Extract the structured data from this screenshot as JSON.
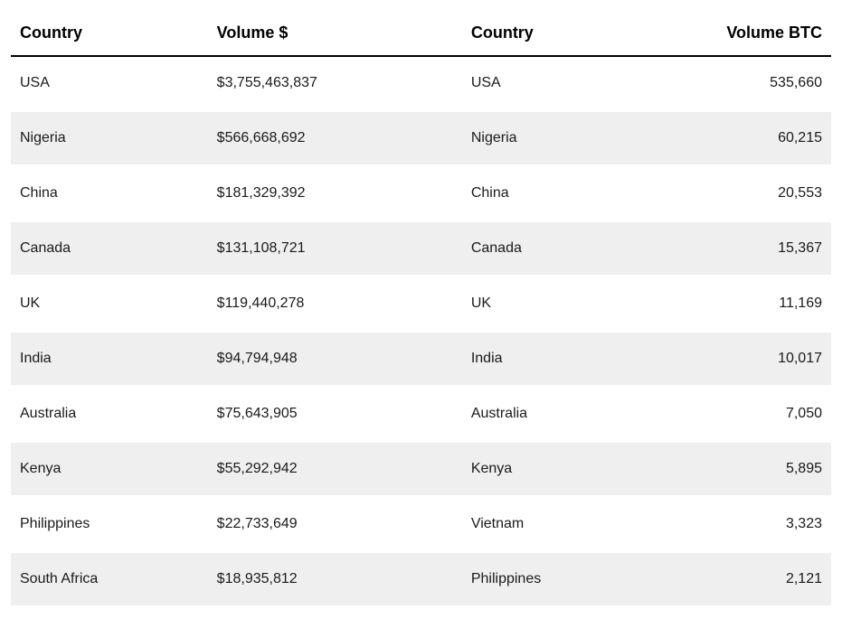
{
  "table": {
    "type": "table",
    "background_color": "#ffffff",
    "stripe_color": "#efefef",
    "text_color": "#1a1a1a",
    "header_border_color": "#000000",
    "header_fontsize": 18,
    "cell_fontsize": 16,
    "columns": [
      {
        "label": "Country",
        "align": "left"
      },
      {
        "label": "Volume $",
        "align": "left"
      },
      {
        "label": "Country",
        "align": "left"
      },
      {
        "label": "Volume BTC",
        "align": "right"
      }
    ],
    "rows": [
      {
        "country_usd": "USA",
        "volume_usd": "$3,755,463,837",
        "country_btc": "USA",
        "volume_btc": "535,660"
      },
      {
        "country_usd": "Nigeria",
        "volume_usd": "$566,668,692",
        "country_btc": "Nigeria",
        "volume_btc": "60,215"
      },
      {
        "country_usd": "China",
        "volume_usd": "$181,329,392",
        "country_btc": "China",
        "volume_btc": "20,553"
      },
      {
        "country_usd": "Canada",
        "volume_usd": "$131,108,721",
        "country_btc": "Canada",
        "volume_btc": "15,367"
      },
      {
        "country_usd": "UK",
        "volume_usd": "$119,440,278",
        "country_btc": "UK",
        "volume_btc": "11,169"
      },
      {
        "country_usd": "India",
        "volume_usd": "$94,794,948",
        "country_btc": "India",
        "volume_btc": "10,017"
      },
      {
        "country_usd": "Australia",
        "volume_usd": "$75,643,905",
        "country_btc": "Australia",
        "volume_btc": "7,050"
      },
      {
        "country_usd": "Kenya",
        "volume_usd": "$55,292,942",
        "country_btc": "Kenya",
        "volume_btc": "5,895"
      },
      {
        "country_usd": "Philippines",
        "volume_usd": "$22,733,649",
        "country_btc": "Vietnam",
        "volume_btc": "3,323"
      },
      {
        "country_usd": "South Africa",
        "volume_usd": "$18,935,812",
        "country_btc": "Philippines",
        "volume_btc": "2,121"
      }
    ]
  }
}
